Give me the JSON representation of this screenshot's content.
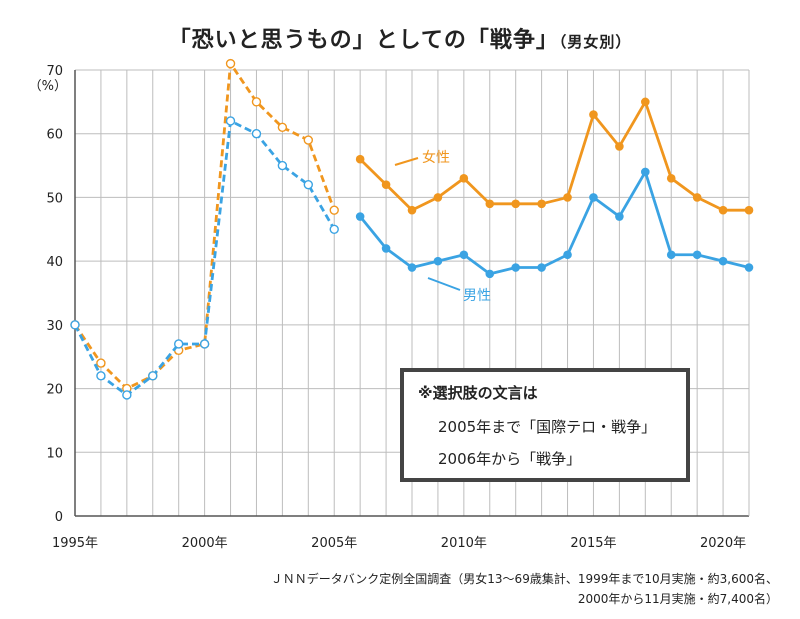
{
  "title": "「恐いと思うもの」としての「戦争」",
  "subtitle": "（男女別）",
  "note": {
    "heading": "※選択肢の文言は",
    "line1": "2005年まで「国際テロ・戦争」",
    "line2": "2006年から「戦争」"
  },
  "source": {
    "line1": "ＪＮＮデータバンク定例全国調査（男女13～69歳集計、1999年まで10月実施・約3,600名、",
    "line2": "2000年から11月実施・約7,400名）"
  },
  "chart_data": {
    "type": "line",
    "ylim": [
      0,
      70
    ],
    "xlim": [
      1995,
      2021
    ],
    "y_ticks": [
      "0",
      "10",
      "20",
      "30",
      "40",
      "50",
      "60",
      "70"
    ],
    "y_unit": "（%）",
    "x_ticks": [
      "1995年",
      "2000年",
      "2005年",
      "2010年",
      "2015年",
      "2020年"
    ],
    "grid": true,
    "series": [
      {
        "name": "女性",
        "color": "#f0961e",
        "segments": [
          {
            "style": "dashed",
            "marker": "open",
            "x": [
              1995,
              1996,
              1997,
              1998,
              1999,
              2000,
              2001,
              2002,
              2003,
              2004,
              2005
            ],
            "y": [
              30,
              24,
              20,
              22,
              26,
              27,
              71,
              65,
              61,
              59,
              48
            ]
          },
          {
            "style": "solid",
            "marker": "filled",
            "x": [
              2006,
              2007,
              2008,
              2009,
              2010,
              2011,
              2012,
              2013,
              2014,
              2015,
              2016,
              2017,
              2018,
              2019,
              2020,
              2021
            ],
            "y": [
              56,
              52,
              48,
              50,
              53,
              49,
              49,
              49,
              50,
              63,
              58,
              65,
              53,
              50,
              48,
              48
            ]
          }
        ]
      },
      {
        "name": "男性",
        "color": "#3aa3e3",
        "segments": [
          {
            "style": "dashed",
            "marker": "open",
            "x": [
              1995,
              1996,
              1997,
              1998,
              1999,
              2000,
              2001,
              2002,
              2003,
              2004,
              2005
            ],
            "y": [
              30,
              22,
              19,
              22,
              27,
              27,
              62,
              60,
              55,
              52,
              45
            ]
          },
          {
            "style": "solid",
            "marker": "filled",
            "x": [
              2006,
              2007,
              2008,
              2009,
              2010,
              2011,
              2012,
              2013,
              2014,
              2015,
              2016,
              2017,
              2018,
              2019,
              2020,
              2021
            ],
            "y": [
              47,
              42,
              39,
              40,
              41,
              38,
              39,
              39,
              41,
              50,
              47,
              54,
              41,
              41,
              40,
              39
            ]
          }
        ]
      }
    ]
  }
}
